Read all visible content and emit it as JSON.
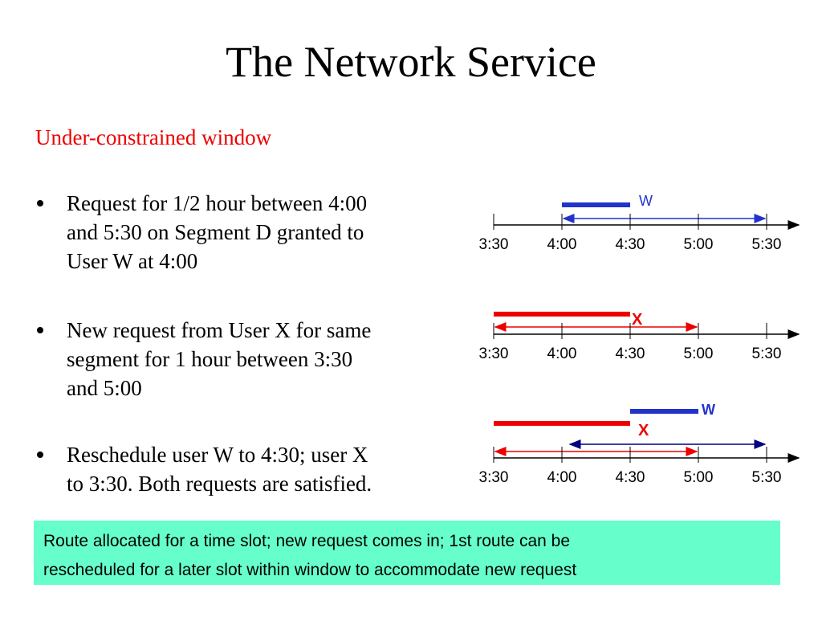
{
  "title": "The Network Service",
  "subtitle": "Under-constrained window",
  "bullets": [
    [
      "Request for 1/2 hour between 4:00",
      "and 5:30 on Segment D granted to",
      "User W at 4:00"
    ],
    [
      "New request from User X for same",
      "segment for 1 hour between 3:30",
      "and 5:00"
    ],
    [
      "Reschedule user W to 4:30; user X",
      "to 3:30. Both requests are satisfied."
    ]
  ],
  "timelines": [
    {
      "ticks": [
        "3:30",
        "4:00",
        "4:30",
        "5:00",
        "5:30"
      ],
      "labels": [
        "W"
      ]
    },
    {
      "ticks": [
        "3:30",
        "4:00",
        "4:30",
        "5:00",
        "5:30"
      ],
      "labels": [
        "X"
      ]
    },
    {
      "ticks": [
        "3:30",
        "4:00",
        "4:30",
        "5:00",
        "5:30"
      ],
      "labels": [
        "W",
        "X"
      ]
    }
  ],
  "note": [
    "Route allocated for a time slot; new request comes in; 1st route can be",
    "rescheduled for a later slot within window to accommodate new request"
  ]
}
